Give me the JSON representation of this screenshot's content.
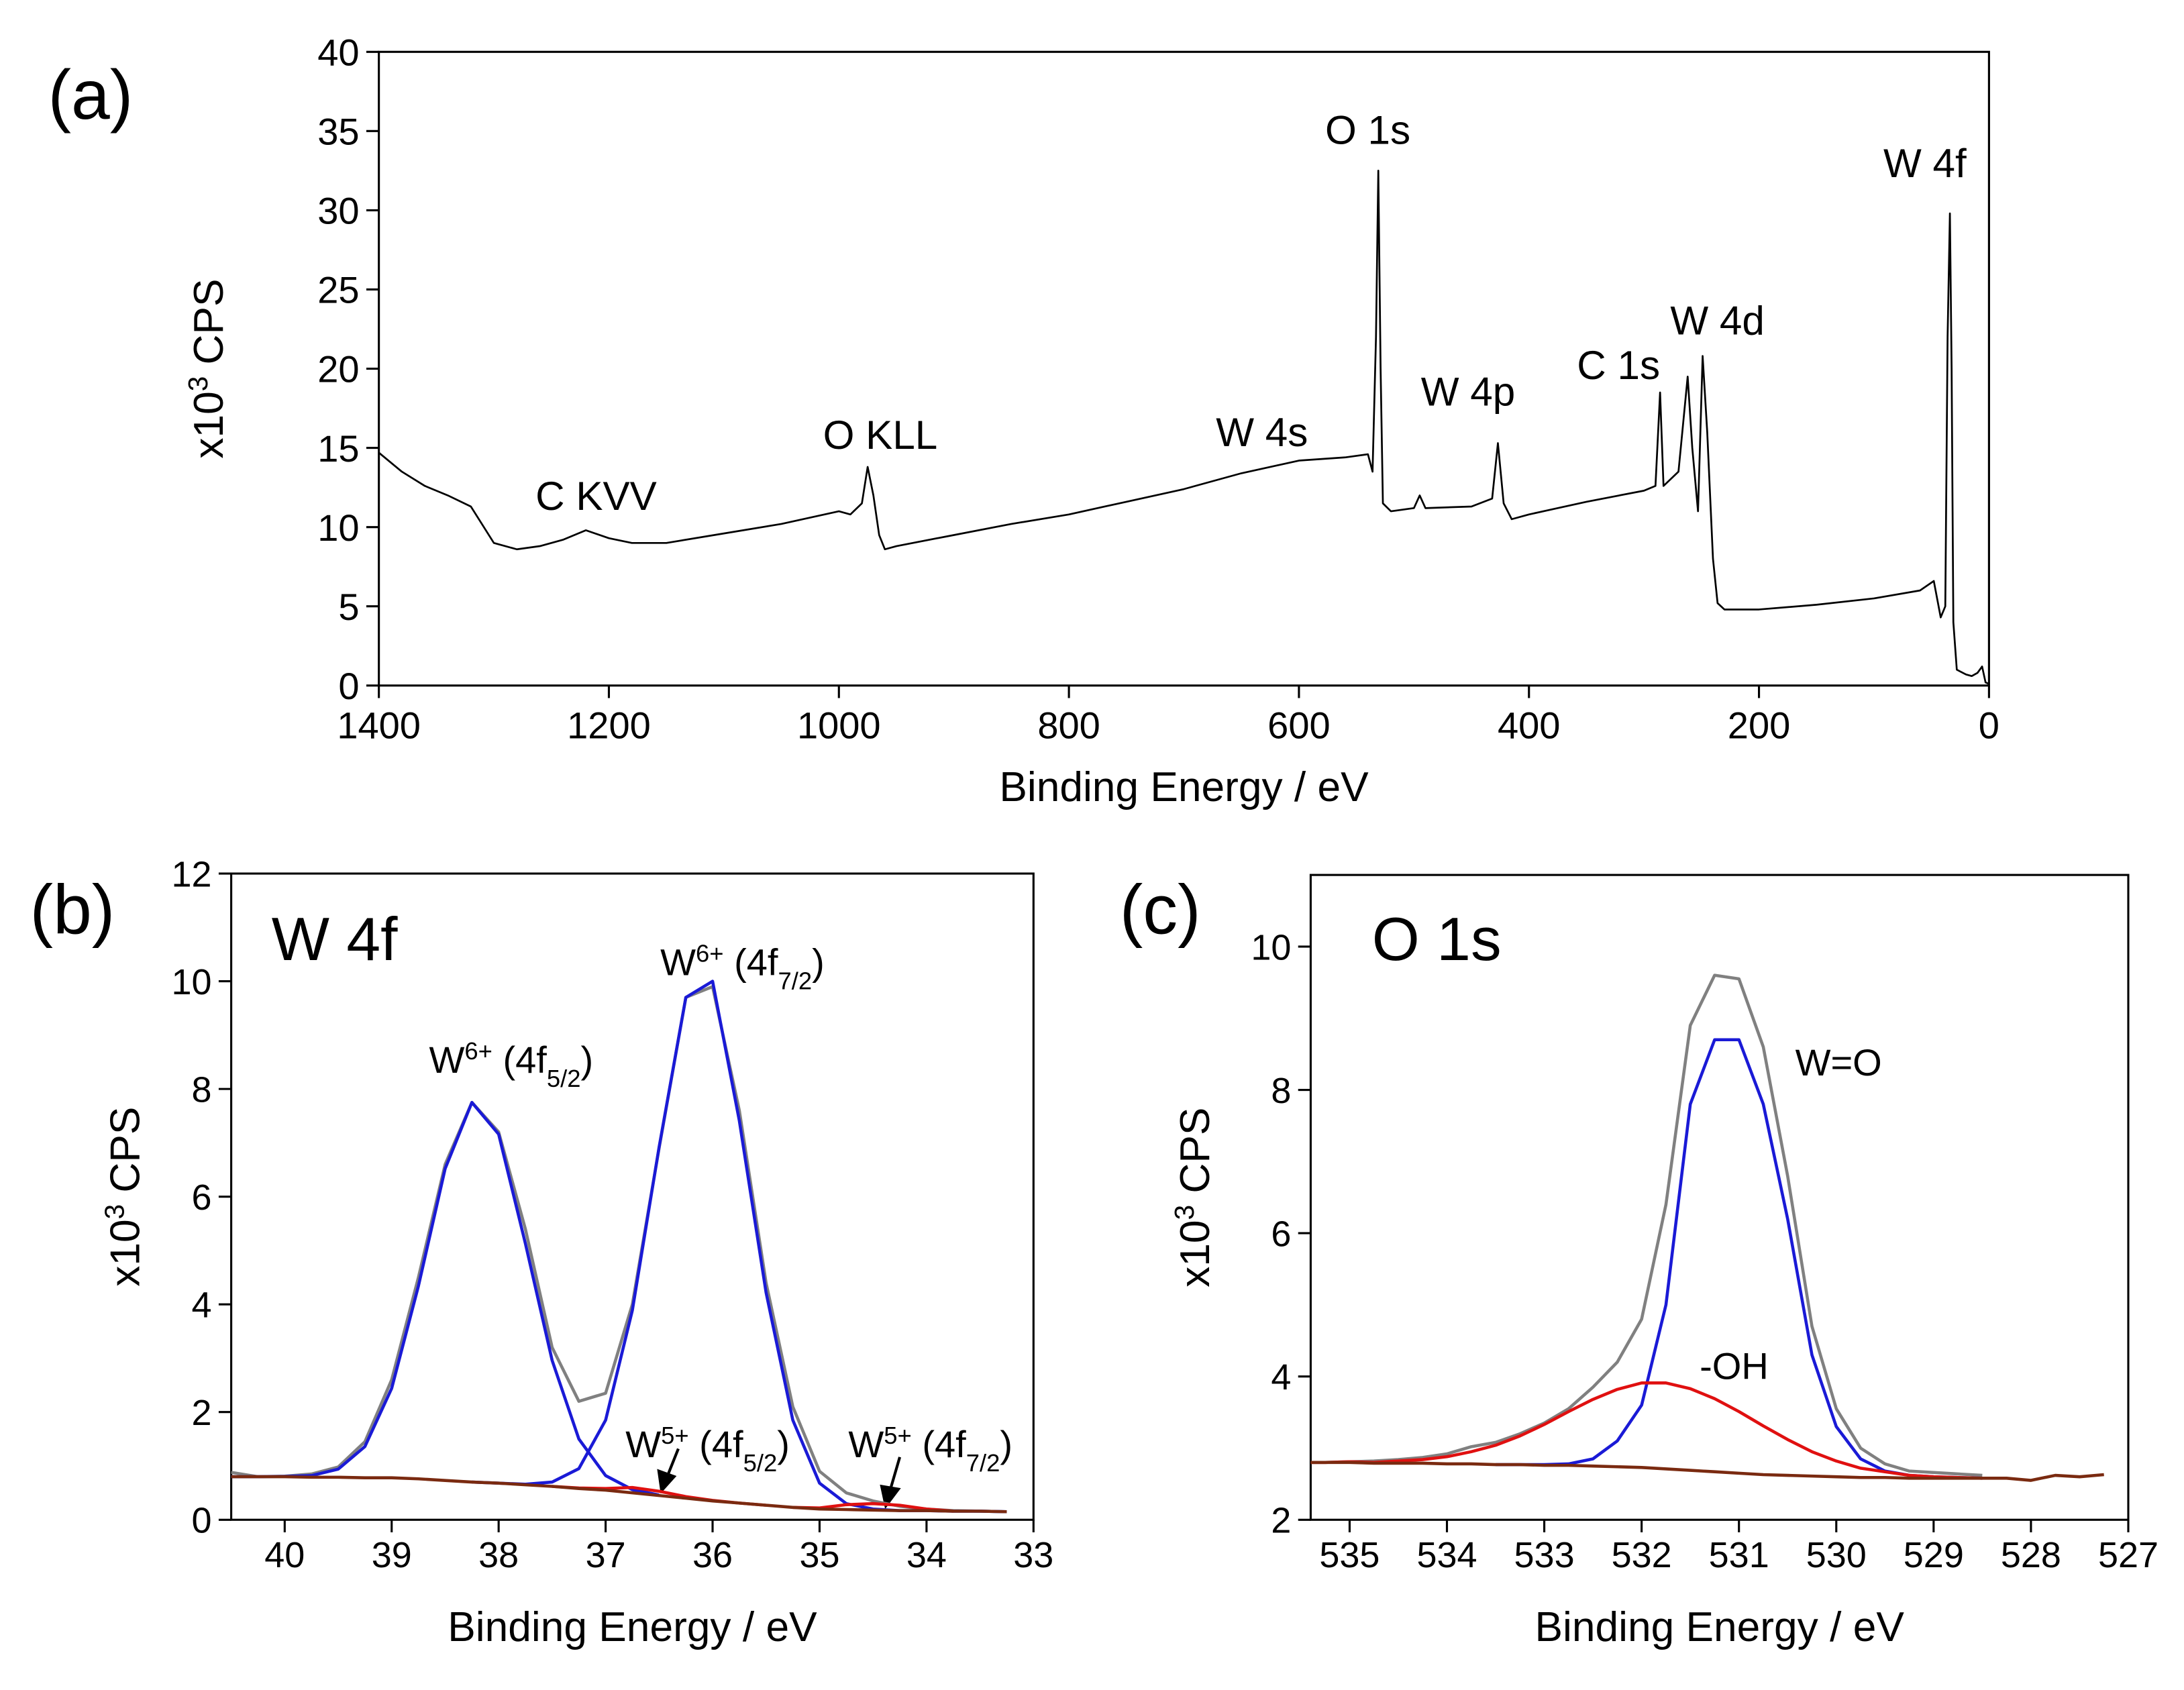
{
  "chart_data": [
    {
      "type": "line",
      "label": "(a)",
      "xlabel": "Binding Energy / eV",
      "ylabel": [
        {
          "text": "x10"
        },
        {
          "text": "3",
          "sup": true
        },
        {
          "text": " CPS"
        }
      ],
      "xlim": [
        1400,
        0
      ],
      "xticks": [
        1400,
        1200,
        1000,
        800,
        600,
        400,
        200,
        0
      ],
      "ylim": [
        0,
        40
      ],
      "yticks": [
        0,
        5,
        10,
        15,
        20,
        25,
        30,
        35,
        40
      ],
      "x": [
        1400,
        1380,
        1360,
        1340,
        1320,
        1300,
        1280,
        1260,
        1240,
        1220,
        1200,
        1180,
        1150,
        1100,
        1050,
        1000,
        990,
        980,
        975,
        970,
        965,
        960,
        950,
        900,
        850,
        800,
        750,
        700,
        650,
        600,
        560,
        540,
        536,
        533,
        531,
        529,
        527,
        520,
        500,
        495,
        490,
        450,
        432,
        427,
        422,
        415,
        400,
        350,
        300,
        290,
        286,
        283,
        270,
        262,
        258,
        253,
        249,
        245,
        240,
        236,
        230,
        200,
        150,
        100,
        60,
        48,
        42,
        38,
        36,
        34,
        32.5,
        31,
        28,
        20,
        15,
        10,
        6,
        3,
        0
      ],
      "series": [
        {
          "color": "#000000",
          "values": [
            14.7,
            13.5,
            12.6,
            12.0,
            11.3,
            9.0,
            8.6,
            8.8,
            9.2,
            9.8,
            9.3,
            9.0,
            9.0,
            9.6,
            10.2,
            11.0,
            10.8,
            11.5,
            13.8,
            12.0,
            9.5,
            8.6,
            8.8,
            9.5,
            10.2,
            10.8,
            11.6,
            12.4,
            13.4,
            14.2,
            14.4,
            14.6,
            13.5,
            22,
            32.5,
            20,
            11.5,
            11.0,
            11.2,
            12.0,
            11.2,
            11.3,
            11.8,
            15.3,
            11.5,
            10.5,
            10.8,
            11.6,
            12.3,
            12.6,
            18.5,
            12.6,
            13.5,
            19.5,
            15,
            11,
            20.8,
            16,
            8,
            5.2,
            4.8,
            4.8,
            5.1,
            5.5,
            6.0,
            6.6,
            4.3,
            5,
            22,
            29.8,
            20,
            4,
            1.0,
            0.7,
            0.6,
            0.8,
            1.2,
            0.2,
            0.1
          ]
        }
      ],
      "annotations": [
        [
          {
            "text": "O 1s"
          }
        ],
        [
          {
            "text": "W 4f"
          }
        ],
        [
          {
            "text": "W 4d"
          }
        ],
        [
          {
            "text": "C 1s"
          }
        ],
        [
          {
            "text": "W 4p"
          }
        ],
        [
          {
            "text": "W 4s"
          }
        ],
        [
          {
            "text": "O KLL"
          }
        ],
        [
          {
            "text": "C KVV"
          }
        ]
      ]
    },
    {
      "type": "line",
      "label": "(b)",
      "title": "W 4f",
      "xlabel": "Binding Energy / eV",
      "ylabel": [
        {
          "text": "x10"
        },
        {
          "text": "3",
          "sup": true
        },
        {
          "text": " CPS"
        }
      ],
      "xlim": [
        40.5,
        33
      ],
      "xticks": [
        40,
        39,
        38,
        37,
        36,
        35,
        34,
        33
      ],
      "ylim": [
        0,
        12
      ],
      "yticks": [
        0,
        2,
        4,
        6,
        8,
        10,
        12
      ],
      "x": [
        40.5,
        40.25,
        40,
        39.75,
        39.5,
        39.25,
        39,
        38.75,
        38.5,
        38.25,
        38,
        37.75,
        37.5,
        37.25,
        37,
        36.75,
        36.5,
        36.25,
        36,
        35.75,
        35.5,
        35.25,
        35,
        34.75,
        34.5,
        34.25,
        34,
        33.75,
        33.5,
        33.25
      ],
      "series": [
        {
          "color": "#808080",
          "values": [
            0.88,
            0.8,
            0.81,
            0.85,
            0.98,
            1.45,
            2.6,
            4.5,
            6.6,
            7.75,
            7.2,
            5.4,
            3.2,
            2.2,
            2.35,
            4.0,
            6.9,
            9.7,
            9.9,
            7.6,
            4.4,
            2.1,
            0.9,
            0.5,
            0.35,
            0.25,
            0.2,
            0.17,
            0.16,
            0.15
          ]
        },
        {
          "color": "#1a1ad6",
          "values": [
            0.8,
            0.8,
            0.805,
            0.82,
            0.94,
            1.36,
            2.44,
            4.34,
            6.52,
            7.75,
            7.16,
            5.13,
            2.96,
            1.5,
            0.82,
            0.56,
            0.46,
            null,
            null,
            null,
            null,
            null,
            null,
            null,
            null,
            null,
            null,
            null,
            null,
            null
          ]
        },
        {
          "color": "#1a1ad6",
          "values": [
            null,
            null,
            null,
            null,
            null,
            null,
            null,
            null,
            null,
            0.7,
            0.68,
            0.66,
            0.7,
            0.95,
            1.85,
            3.89,
            6.92,
            9.7,
            10.0,
            7.41,
            4.22,
            1.85,
            0.68,
            0.3,
            0.2,
            0.17,
            0.17,
            0.16,
            0.16,
            0.15
          ]
        },
        {
          "color": "#e01010",
          "values": [
            null,
            null,
            null,
            null,
            null,
            null,
            null,
            null,
            null,
            null,
            null,
            null,
            0.62,
            0.59,
            0.58,
            0.6,
            0.53,
            0.43,
            0.36,
            0.31,
            0.27,
            null,
            null,
            null,
            null,
            null,
            null,
            null,
            null,
            null
          ]
        },
        {
          "color": "#e01010",
          "values": [
            null,
            null,
            null,
            null,
            null,
            null,
            null,
            null,
            null,
            null,
            null,
            null,
            null,
            null,
            null,
            null,
            null,
            null,
            null,
            null,
            null,
            0.23,
            0.22,
            0.28,
            0.3,
            0.27,
            0.2,
            0.16,
            null,
            null
          ]
        },
        {
          "color": "#7a2a10",
          "values": [
            0.8,
            0.8,
            0.8,
            0.79,
            0.79,
            0.78,
            0.78,
            0.76,
            0.73,
            0.7,
            0.68,
            0.65,
            0.62,
            0.58,
            0.55,
            0.5,
            0.45,
            0.4,
            0.35,
            0.31,
            0.27,
            0.23,
            0.2,
            0.19,
            0.18,
            0.17,
            0.17,
            0.16,
            0.16,
            0.15
          ]
        }
      ],
      "annotations": [
        [
          {
            "text": "W"
          },
          {
            "text": "6+",
            "sup": true
          },
          {
            "text": " (4f"
          },
          {
            "text": "7/2",
            "sub": true
          },
          {
            "text": ")"
          }
        ],
        [
          {
            "text": "W"
          },
          {
            "text": "6+",
            "sup": true
          },
          {
            "text": " (4f"
          },
          {
            "text": "5/2",
            "sub": true
          },
          {
            "text": ")"
          }
        ],
        [
          {
            "text": "W"
          },
          {
            "text": "5+",
            "sup": true
          },
          {
            "text": " (4f"
          },
          {
            "text": "5/2",
            "sub": true
          },
          {
            "text": ")"
          }
        ],
        [
          {
            "text": "W"
          },
          {
            "text": "5+",
            "sup": true
          },
          {
            "text": " (4f"
          },
          {
            "text": "7/2",
            "sub": true
          },
          {
            "text": ")"
          }
        ]
      ]
    },
    {
      "type": "line",
      "label": "(c)",
      "title": "O 1s",
      "xlabel": "Binding Energy / eV",
      "ylabel": [
        {
          "text": "x10"
        },
        {
          "text": "3",
          "sup": true
        },
        {
          "text": " CPS"
        }
      ],
      "xlim": [
        535.4,
        527
      ],
      "xticks": [
        535,
        534,
        533,
        532,
        531,
        530,
        529,
        528,
        527
      ],
      "ylim": [
        2,
        11
      ],
      "yticks": [
        2,
        4,
        6,
        8,
        10
      ],
      "x": [
        535.5,
        535.25,
        535,
        534.75,
        534.5,
        534.25,
        534,
        533.75,
        533.5,
        533.25,
        533,
        532.75,
        532.5,
        532.25,
        532,
        531.75,
        531.5,
        531.25,
        531,
        530.75,
        530.5,
        530.25,
        530,
        529.75,
        529.5,
        529.25,
        529,
        528.75,
        528.5,
        528.25,
        528,
        527.75,
        527.5,
        527.25
      ],
      "series": [
        {
          "color": "#808080",
          "values": [
            2.8,
            2.8,
            2.81,
            2.82,
            2.84,
            2.87,
            2.92,
            3.02,
            3.08,
            3.2,
            3.35,
            3.55,
            3.85,
            4.2,
            4.8,
            6.4,
            8.9,
            9.6,
            9.55,
            8.6,
            6.8,
            4.7,
            3.55,
            3.0,
            2.78,
            2.68,
            2.66,
            2.64,
            2.62,
            null,
            null,
            null,
            null,
            null
          ]
        },
        {
          "color": "#1a1ad6",
          "values": [
            null,
            null,
            null,
            null,
            null,
            null,
            null,
            null,
            2.77,
            2.77,
            2.77,
            2.78,
            2.85,
            3.1,
            3.6,
            5.0,
            7.8,
            8.7,
            8.7,
            7.8,
            6.2,
            4.3,
            3.3,
            2.85,
            2.68,
            2.62,
            2.6,
            2.59,
            2.58,
            null,
            null,
            null,
            null,
            null
          ]
        },
        {
          "color": "#e01010",
          "values": [
            2.8,
            2.8,
            2.81,
            2.8,
            2.82,
            2.84,
            2.88,
            2.95,
            3.04,
            3.17,
            3.33,
            3.51,
            3.68,
            3.82,
            3.91,
            3.91,
            3.83,
            3.69,
            3.51,
            3.31,
            3.12,
            2.95,
            2.82,
            2.72,
            2.67,
            2.62,
            2.6,
            2.59,
            2.58,
            null,
            null,
            null,
            null,
            null
          ]
        },
        {
          "color": "#7a2a10",
          "values": [
            2.8,
            2.8,
            2.8,
            2.79,
            2.79,
            2.79,
            2.78,
            2.78,
            2.77,
            2.77,
            2.76,
            2.76,
            2.75,
            2.74,
            2.73,
            2.71,
            2.69,
            2.67,
            2.65,
            2.63,
            2.62,
            2.61,
            2.6,
            2.59,
            2.59,
            2.58,
            2.58,
            2.58,
            2.58,
            2.58,
            2.55,
            2.62,
            2.6,
            2.63
          ]
        }
      ],
      "annotations": [
        [
          {
            "text": "W=O"
          }
        ],
        [
          {
            "text": "-OH"
          }
        ]
      ]
    }
  ]
}
